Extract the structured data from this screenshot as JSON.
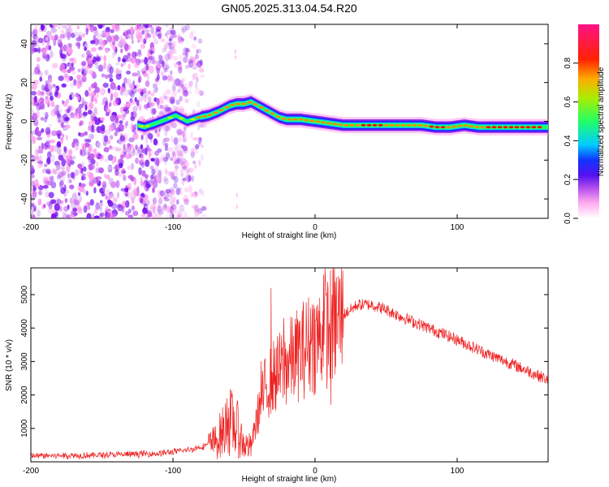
{
  "title": "GN05.2025.313.04.54.R20",
  "colors": {
    "snr_line": "#ee2222",
    "colormap": [
      "#ffffff",
      "#ff99ee",
      "#bb55ee",
      "#7711ee",
      "#2222ff",
      "#00ccff",
      "#22ff66",
      "#ccee00",
      "#ff8800",
      "#ff0000",
      "#ff22aa"
    ]
  },
  "chart_data": [
    {
      "type": "heatmap",
      "name": "spectrogram",
      "xlabel": "Height of straight line (km)",
      "ylabel": "Frequency (Hz)",
      "xlim": [
        -200,
        164
      ],
      "ylim": [
        -50,
        50
      ],
      "xticks": [
        -200,
        -100,
        0,
        100
      ],
      "xtick_labels": [
        "-200",
        "-100",
        "0",
        "100"
      ],
      "yticks": [
        -40,
        -20,
        0,
        20,
        40
      ],
      "ytick_labels": [
        "-40",
        "-20",
        "0",
        "20",
        "40"
      ],
      "ridge": {
        "x": [
          -125,
          -120,
          -112,
          -105,
          -98,
          -90,
          -82,
          -75,
          -68,
          -60,
          -55,
          -50,
          -45,
          -40,
          -35,
          -30,
          -25,
          -20,
          -10,
          0,
          10,
          20,
          40,
          60,
          75,
          85,
          95,
          105,
          115,
          130,
          150,
          164
        ],
        "y": [
          -2,
          -3,
          -1,
          1,
          3,
          0,
          2,
          3,
          5,
          8,
          9,
          9,
          10,
          8,
          6,
          4,
          2,
          1,
          1,
          0,
          -1,
          -2,
          -2,
          -2,
          -2,
          -3,
          -3,
          -2,
          -3,
          -3,
          -3,
          -3
        ]
      }
    },
    {
      "type": "colorbar",
      "name": "colorbar",
      "label": "Normalized spectral amplitude",
      "range": [
        0.0,
        1.0
      ],
      "ticks": [
        0.0,
        0.2,
        0.4,
        0.6,
        0.8
      ],
      "tick_labels": [
        "0.0",
        "0.2",
        "0.4",
        "0.6",
        "0.8"
      ]
    },
    {
      "type": "line",
      "name": "snr",
      "xlabel": "Height of straight line (km)",
      "ylabel": "SNR (10 * v/v)",
      "xlim": [
        -200,
        164
      ],
      "ylim": [
        0,
        5800
      ],
      "xticks": [
        -200,
        -100,
        0,
        100
      ],
      "xtick_labels": [
        "-200",
        "-100",
        "0",
        "100"
      ],
      "yticks": [
        1000,
        2000,
        3000,
        4000,
        5000
      ],
      "ytick_labels": [
        "1000",
        "2000",
        "3000",
        "4000",
        "5000"
      ],
      "envelope": {
        "x": [
          -200,
          -150,
          -110,
          -90,
          -80,
          -70,
          -65,
          -60,
          -55,
          -50,
          -45,
          -40,
          -35,
          -30,
          -25,
          -20,
          -15,
          -10,
          -5,
          0,
          10,
          20,
          30,
          40,
          50,
          60,
          80,
          100,
          120,
          140,
          164
        ],
        "y": [
          180,
          200,
          250,
          350,
          450,
          600,
          900,
          1200,
          1000,
          500,
          450,
          1500,
          2200,
          2500,
          2700,
          2900,
          3100,
          3300,
          3500,
          3600,
          4000,
          4400,
          4700,
          4700,
          4550,
          4350,
          4000,
          3650,
          3250,
          2900,
          2450
        ]
      },
      "spikes": [
        {
          "x": -62,
          "y": 1900
        },
        {
          "x": -55,
          "y": 1700
        },
        {
          "x": -38,
          "y": 3000
        },
        {
          "x": -31,
          "y": 5200
        },
        {
          "x": -22,
          "y": 4300
        },
        {
          "x": -12,
          "y": 4100
        },
        {
          "x": -2,
          "y": 4700
        },
        {
          "x": 6,
          "y": 5600
        },
        {
          "x": 7,
          "y": 5800
        },
        {
          "x": 12,
          "y": 5000
        },
        {
          "x": 11,
          "y": 1700
        }
      ]
    }
  ]
}
